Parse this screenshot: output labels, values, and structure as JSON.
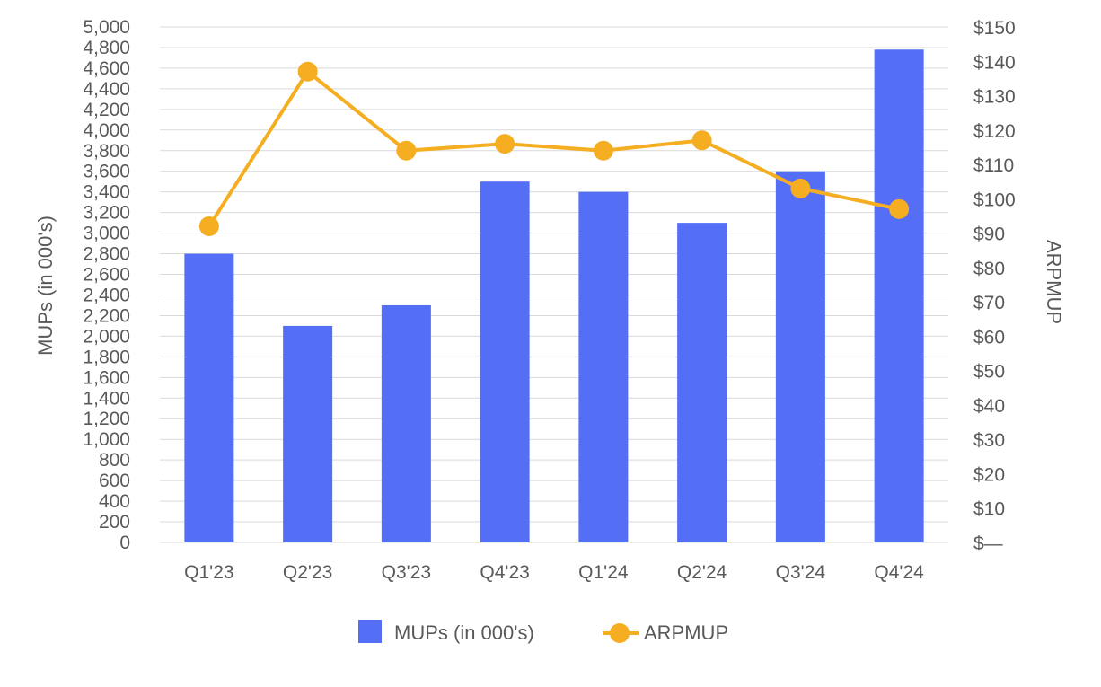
{
  "chart_data": {
    "type": "bar",
    "categories": [
      "Q1'23",
      "Q2'23",
      "Q3'23",
      "Q4'23",
      "Q1'24",
      "Q2'24",
      "Q3'24",
      "Q4'24"
    ],
    "series": [
      {
        "name": "MUPs (in 000's)",
        "type": "bar",
        "axis": "left",
        "color": "#546ef5",
        "values": [
          2800,
          2100,
          2300,
          3500,
          3400,
          3100,
          3600,
          4780
        ]
      },
      {
        "name": "ARPMUP",
        "type": "line",
        "axis": "right",
        "color": "#f5ae22",
        "values": [
          92,
          137,
          114,
          116,
          114,
          117,
          103,
          97
        ]
      }
    ],
    "ylabel": "MUPs (in 000's)",
    "y2label": "ARPMUP",
    "ylim": [
      0,
      5000
    ],
    "y2lim": [
      0,
      150
    ],
    "yticks": [
      "0",
      "200",
      "400",
      "600",
      "800",
      "1,000",
      "1,200",
      "1,400",
      "1,600",
      "1,800",
      "2,000",
      "2,200",
      "2,400",
      "2,600",
      "2,800",
      "3,000",
      "3,200",
      "3,400",
      "3,600",
      "3,800",
      "4,000",
      "4,200",
      "4,400",
      "4,600",
      "4,800",
      "5,000"
    ],
    "y2ticks": [
      "$—",
      "$10",
      "$20",
      "$30",
      "$40",
      "$50",
      "$60",
      "$70",
      "$80",
      "$90",
      "$100",
      "$110",
      "$120",
      "$130",
      "$140",
      "$150"
    ],
    "grid": true,
    "legend_position": "bottom-center"
  }
}
